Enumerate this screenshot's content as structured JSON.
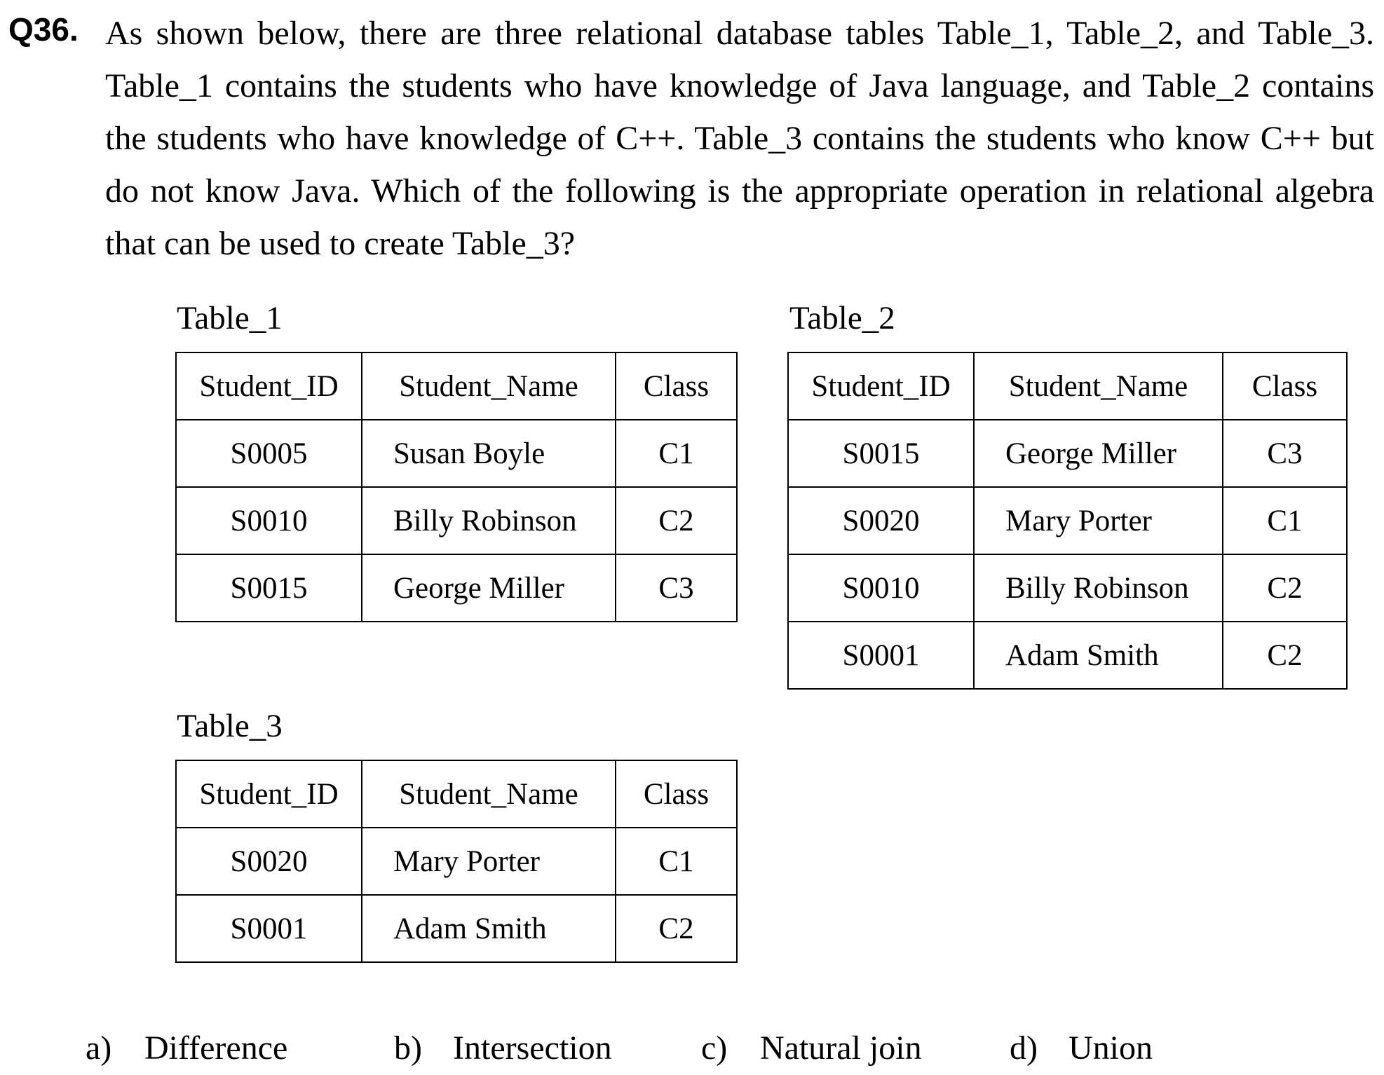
{
  "question": {
    "number": "Q36.",
    "text": "As shown below, there are three relational database tables Table_1, Table_2, and Table_3. Table_1 contains the students who have knowledge of Java language, and Table_2 contains the students who have knowledge of C++. Table_3 contains the students who know C++ but do not know Java. Which of the following is the appropriate operation in relational algebra that can be used to create Table_3?"
  },
  "headers": {
    "id": "Student_ID",
    "name": "Student_Name",
    "cls": "Class"
  },
  "table_1": {
    "caption": "Table_1",
    "rows": [
      {
        "id": "S0005",
        "name": "Susan Boyle",
        "cls": "C1"
      },
      {
        "id": "S0010",
        "name": "Billy Robinson",
        "cls": "C2"
      },
      {
        "id": "S0015",
        "name": "George Miller",
        "cls": "C3"
      }
    ]
  },
  "table_2": {
    "caption": "Table_2",
    "rows": [
      {
        "id": "S0015",
        "name": "George Miller",
        "cls": "C3"
      },
      {
        "id": "S0020",
        "name": "Mary Porter",
        "cls": "C1"
      },
      {
        "id": "S0010",
        "name": "Billy Robinson",
        "cls": "C2"
      },
      {
        "id": "S0001",
        "name": "Adam Smith",
        "cls": "C2"
      }
    ]
  },
  "table_3": {
    "caption": "Table_3",
    "rows": [
      {
        "id": "S0020",
        "name": "Mary Porter",
        "cls": "C1"
      },
      {
        "id": "S0001",
        "name": "Adam Smith",
        "cls": "C2"
      }
    ]
  },
  "options": [
    {
      "letter": "a)",
      "text": "Difference"
    },
    {
      "letter": "b)",
      "text": "Intersection"
    },
    {
      "letter": "c)",
      "text": "Natural join"
    },
    {
      "letter": "d)",
      "text": "Union"
    }
  ]
}
